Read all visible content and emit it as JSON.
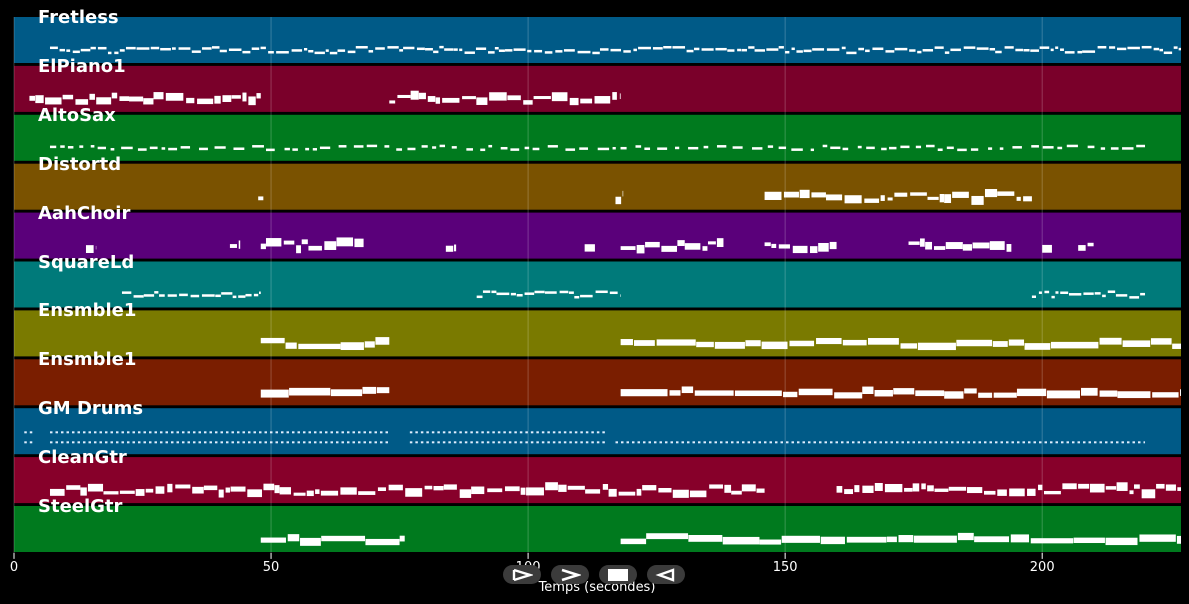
{
  "chart_data": {
    "type": "piano-roll",
    "xlabel": "Temps (secondes)",
    "xlim": [
      0,
      227
    ],
    "x_ticks": [
      0,
      50,
      100,
      150,
      200
    ],
    "tracks": [
      {
        "name": "Fretless",
        "color": "#005a87",
        "segments": [
          [
            7,
            227
          ]
        ],
        "style": "thin"
      },
      {
        "name": "ElPiano1",
        "color": "#7a002a",
        "segments": [
          [
            3,
            48
          ],
          [
            73,
            118
          ]
        ],
        "style": "block"
      },
      {
        "name": "AltoSax",
        "color": "#007a1e",
        "segments": [
          [
            7,
            220
          ]
        ],
        "style": "dash"
      },
      {
        "name": "Distortd",
        "color": "#7a5200",
        "segments": [
          [
            47.5,
            48.5
          ],
          [
            117,
            118.5
          ],
          [
            146,
            198
          ]
        ],
        "style": "block"
      },
      {
        "name": "AahChoir",
        "color": "#5a007a",
        "segments": [
          [
            14,
            16
          ],
          [
            42,
            44
          ],
          [
            48,
            68
          ],
          [
            84,
            86
          ],
          [
            111,
            113
          ],
          [
            118,
            138
          ],
          [
            146,
            160
          ],
          [
            174,
            194
          ],
          [
            200,
            202
          ],
          [
            207,
            210
          ]
        ],
        "style": "block"
      },
      {
        "name": "SquareLd",
        "color": "#007a7a",
        "segments": [
          [
            21,
            48
          ],
          [
            90,
            118
          ],
          [
            198,
            220
          ]
        ],
        "style": "thin"
      },
      {
        "name": "Ensmble1",
        "color": "#7a7a00",
        "segments": [
          [
            48,
            73
          ],
          [
            118,
            227
          ]
        ],
        "style": "thick"
      },
      {
        "name": "Ensmble1",
        "color": "#7a1e00",
        "segments": [
          [
            48,
            73
          ],
          [
            118,
            227
          ]
        ],
        "style": "thick"
      },
      {
        "name": "GM Drums",
        "color": "#005a87",
        "segments": [
          [
            2,
            4
          ],
          [
            7,
            73
          ],
          [
            77,
            115
          ],
          [
            117,
            220
          ]
        ],
        "style": "drums"
      },
      {
        "name": "CleanGtr",
        "color": "#87002a",
        "segments": [
          [
            7,
            146
          ],
          [
            160,
            227
          ]
        ],
        "style": "block"
      },
      {
        "name": "SteelGtr",
        "color": "#007a1e",
        "segments": [
          [
            48,
            76
          ],
          [
            118,
            227
          ]
        ],
        "style": "thick"
      }
    ]
  },
  "controls": [
    {
      "name": "play-button",
      "icon": "play-icon"
    },
    {
      "name": "fast-forward-button",
      "icon": "fast-forward-icon"
    },
    {
      "name": "stop-button",
      "icon": "stop-icon"
    },
    {
      "name": "rewind-button",
      "icon": "rewind-icon"
    }
  ]
}
